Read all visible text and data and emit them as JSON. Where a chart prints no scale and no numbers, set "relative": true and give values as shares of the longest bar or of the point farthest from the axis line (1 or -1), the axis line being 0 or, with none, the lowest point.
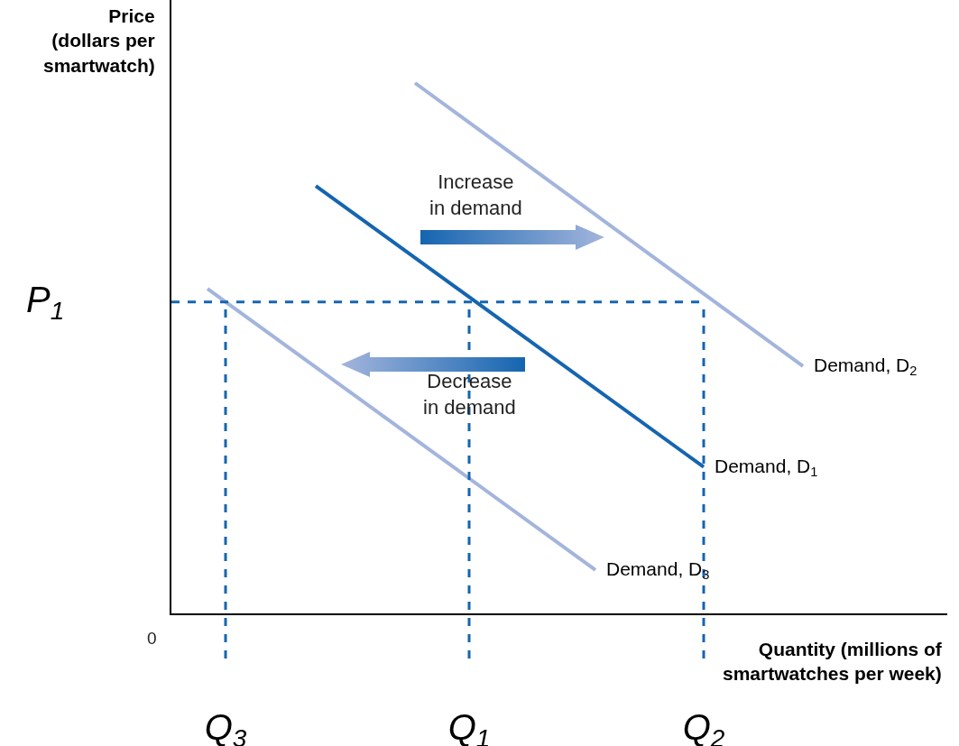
{
  "chart_data": {
    "type": "line",
    "relative": true,
    "xlabel": "Quantity (millions of smartwatches per week)",
    "ylabel": "Price (dollars per smartwatch)",
    "categories": [
      null,
      null,
      null,
      null,
      null,
      null,
      "Q$_{3}$",
      null,
      null,
      null,
      null,
      null,
      null,
      null,
      null,
      null,
      null,
      null,
      null,
      null,
      null,
      null,
      null,
      null,
      null,
      null,
      null,
      null,
      null,
      null,
      null,
      null,
      null,
      "Q$_{1}$",
      null,
      null,
      null,
      null,
      null,
      null,
      null,
      null,
      null,
      null,
      null,
      null,
      null,
      null,
      null,
      null,
      null,
      null,
      null,
      null,
      null,
      null,
      null,
      null,
      null,
      "Q$_{2}$",
      null,
      null,
      null,
      null,
      null,
      null,
      null,
      null,
      null,
      null,
      null,
      null,
      null,
      null,
      null,
      null,
      null,
      null,
      null,
      null,
      null,
      null,
      null,
      null,
      null,
      null,
      null
    ],
    "series": [
      {
        "name": "Demand, D$_{1}$",
        "color": "#1565b0",
        "values": [
          null,
          null,
          null,
          null,
          null,
          null,
          null,
          null,
          null,
          null,
          null,
          null,
          null,
          null,
          null,
          null,
          0.806,
          null,
          null,
          null,
          null,
          null,
          null,
          null,
          null,
          null,
          null,
          null,
          null,
          null,
          null,
          null,
          null,
          null,
          null,
          null,
          null,
          null,
          null,
          null,
          null,
          null,
          null,
          null,
          null,
          null,
          null,
          null,
          null,
          null,
          null,
          null,
          null,
          null,
          null,
          null,
          null,
          null,
          null,
          0.276,
          null,
          null,
          null,
          null,
          null,
          null,
          null,
          null,
          null,
          null,
          null,
          null,
          null,
          null,
          null,
          null,
          null,
          null,
          null,
          null,
          null,
          null,
          null,
          null,
          null,
          null,
          null
        ]
      },
      {
        "name": "Demand, D$_{2}$",
        "color": "#a3b5dc",
        "values": [
          null,
          null,
          null,
          null,
          null,
          null,
          null,
          null,
          null,
          null,
          null,
          null,
          null,
          null,
          null,
          null,
          null,
          null,
          null,
          null,
          null,
          null,
          null,
          null,
          null,
          null,
          null,
          1.0,
          null,
          null,
          null,
          null,
          null,
          null,
          null,
          null,
          null,
          null,
          null,
          null,
          null,
          null,
          null,
          null,
          null,
          null,
          null,
          null,
          null,
          null,
          null,
          null,
          null,
          null,
          null,
          null,
          null,
          null,
          null,
          null,
          null,
          null,
          null,
          null,
          null,
          null,
          null,
          null,
          null,
          null,
          0.466,
          null,
          null,
          null,
          null,
          null,
          null,
          null,
          null,
          null,
          null,
          null,
          null,
          null,
          null,
          null,
          null
        ]
      },
      {
        "name": "Demand, D$_{3}$",
        "color": "#a3b5dc",
        "values": [
          null,
          null,
          null,
          null,
          0.612,
          null,
          null,
          null,
          null,
          null,
          null,
          null,
          null,
          null,
          null,
          null,
          null,
          null,
          null,
          null,
          null,
          null,
          null,
          null,
          null,
          null,
          null,
          null,
          null,
          null,
          null,
          null,
          null,
          null,
          null,
          null,
          null,
          null,
          null,
          null,
          null,
          null,
          null,
          null,
          null,
          null,
          null,
          0.082,
          null,
          null,
          null,
          null,
          null,
          null,
          null,
          null,
          null,
          null,
          null,
          null,
          null,
          null,
          null,
          null,
          null,
          null,
          null,
          null,
          null,
          null,
          null,
          null,
          null,
          null,
          null,
          null,
          null,
          null,
          null,
          null,
          null,
          null,
          null,
          null,
          null,
          null,
          null
        ]
      }
    ],
    "ref_lines": [
      {
        "axis": "y",
        "value": 0.587,
        "label": "P$_{1}$",
        "color": "#1565b0",
        "line_style": "dashed"
      },
      {
        "axis": "x",
        "value": "Q$_{3}$",
        "label": null,
        "color": "#1565b0",
        "line_style": "dashed"
      },
      {
        "axis": "x",
        "value": "Q$_{1}$",
        "label": null,
        "color": "#1565b0",
        "line_style": "dashed"
      },
      {
        "axis": "x",
        "value": "Q$_{2}$",
        "label": null,
        "color": "#1565b0",
        "line_style": "dashed"
      }
    ],
    "annotations": [
      "Increase\nin demand",
      "Decrease\nin demand",
      "0"
    ],
    "grid": false,
    "legend": false,
    "marker": "none",
    "line_style": "solid"
  }
}
